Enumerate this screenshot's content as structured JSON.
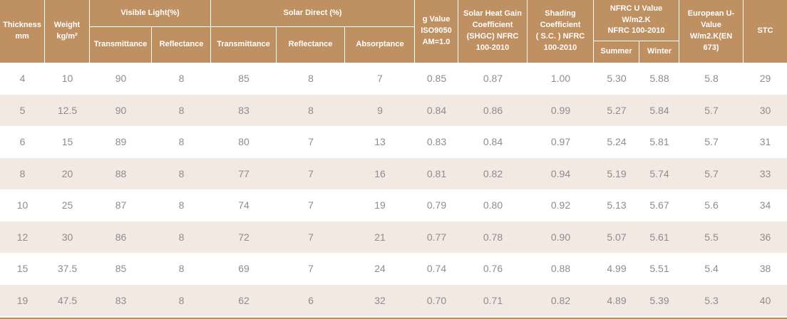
{
  "colors": {
    "header_bg": "#bf9062",
    "header_text": "#ffffff",
    "row_bg": "#ffffff",
    "row_alt_bg": "#f2e9e2",
    "body_text": "#8d8d8d"
  },
  "header": {
    "thickness": "Thickness\nmm",
    "weight": "Weight\nkg/m²",
    "visible_light": {
      "label": "Visible Light(%)",
      "subs": [
        "Transmittance",
        "Reflectance"
      ]
    },
    "solar_direct": {
      "label": "Solar  Direct (%)",
      "subs": [
        "Transmittance",
        "Reflectance",
        "Absorptance"
      ]
    },
    "g_value": "g Value\nISO9050\nAM=1.0",
    "shgc": "Solar Heat Gain\nCoefficient\n(SHGC) NFRC\n100-2010",
    "shading": "Shading\nCoefficient\n( S.C. ) NFRC\n100-2010",
    "nfrc_u": {
      "label": "NFRC U Value\nW/m2.K\nNFRC 100-2010",
      "subs": [
        "Summer",
        "Winter"
      ]
    },
    "european_u": "European U-\nValue\nW/m2.K(EN\n673)",
    "stc": "STC"
  },
  "chart_data": {
    "type": "table",
    "columns": [
      "Thickness mm",
      "Weight kg/m²",
      "Visible Light Transmittance (%)",
      "Visible Light Reflectance (%)",
      "Solar Direct Transmittance (%)",
      "Solar Direct Reflectance (%)",
      "Solar Direct Absorptance (%)",
      "g Value ISO9050 AM=1.0",
      "Solar Heat Gain Coefficient (SHGC) NFRC 100-2010",
      "Shading Coefficient (S.C.) NFRC 100-2010",
      "NFRC U Value W/m2.K Summer",
      "NFRC U Value W/m2.K Winter",
      "European U-Value W/m2.K (EN 673)",
      "STC"
    ],
    "rows": [
      [
        "4",
        "10",
        "90",
        "8",
        "85",
        "8",
        "7",
        "0.85",
        "0.87",
        "1.00",
        "5.30",
        "5.88",
        "5.8",
        "29"
      ],
      [
        "5",
        "12.5",
        "90",
        "8",
        "83",
        "8",
        "9",
        "0.84",
        "0.86",
        "0.99",
        "5.27",
        "5.84",
        "5.7",
        "30"
      ],
      [
        "6",
        "15",
        "89",
        "8",
        "80",
        "7",
        "13",
        "0.83",
        "0.84",
        "0.97",
        "5.24",
        "5.81",
        "5.7",
        "31"
      ],
      [
        "8",
        "20",
        "88",
        "8",
        "77",
        "7",
        "16",
        "0.81",
        "0.82",
        "0.94",
        "5.19",
        "5.74",
        "5.7",
        "33"
      ],
      [
        "10",
        "25",
        "87",
        "8",
        "74",
        "7",
        "19",
        "0.79",
        "0.80",
        "0.92",
        "5.13",
        "5.67",
        "5.6",
        "34"
      ],
      [
        "12",
        "30",
        "86",
        "8",
        "72",
        "7",
        "21",
        "0.77",
        "0.78",
        "0.90",
        "5.07",
        "5.61",
        "5.5",
        "36"
      ],
      [
        "15",
        "37.5",
        "85",
        "8",
        "69",
        "7",
        "24",
        "0.74",
        "0.76",
        "0.88",
        "4.99",
        "5.51",
        "5.4",
        "38"
      ],
      [
        "19",
        "47.5",
        "83",
        "8",
        "62",
        "6",
        "32",
        "0.70",
        "0.71",
        "0.82",
        "4.89",
        "5.39",
        "5.3",
        "40"
      ]
    ]
  }
}
